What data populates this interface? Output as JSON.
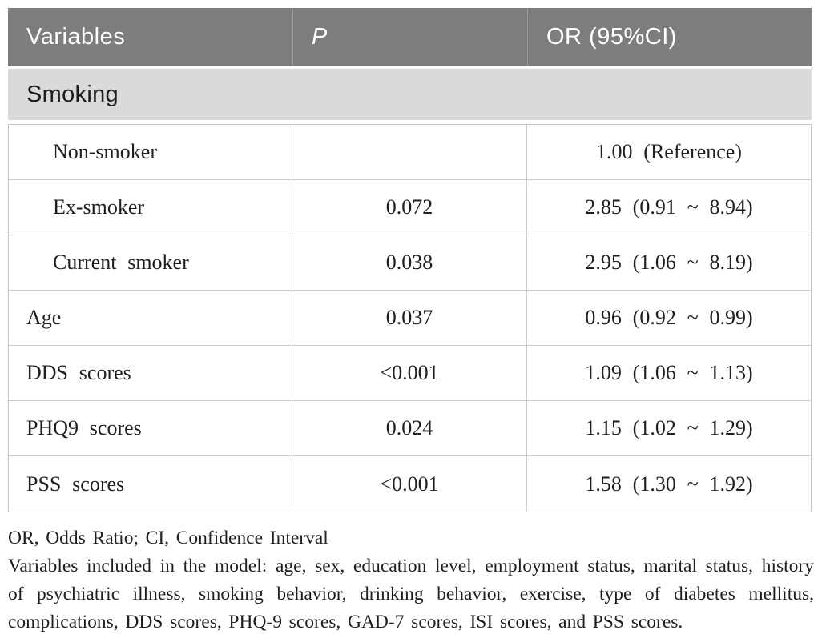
{
  "table": {
    "columns": [
      "Variables",
      "P",
      "OR (95%CI)"
    ],
    "section_label": "Smoking",
    "rows": [
      {
        "label": "Non-smoker",
        "indent": true,
        "p": "",
        "or": "1.00 (Reference)"
      },
      {
        "label": "Ex-smoker",
        "indent": true,
        "p": "0.072",
        "or": "2.85 (0.91 ~ 8.94)"
      },
      {
        "label": "Current smoker",
        "indent": true,
        "p": "0.038",
        "or": "2.95 (1.06 ~ 8.19)"
      },
      {
        "label": "Age",
        "indent": false,
        "p": "0.037",
        "or": "0.96 (0.92 ~ 0.99)"
      },
      {
        "label": "DDS scores",
        "indent": false,
        "p": "<0.001",
        "or": "1.09 (1.06 ~ 1.13)"
      },
      {
        "label": "PHQ9 scores",
        "indent": false,
        "p": "0.024",
        "or": "1.15 (1.02 ~ 1.29)"
      },
      {
        "label": "PSS scores",
        "indent": false,
        "p": "<0.001",
        "or": "1.58 (1.30 ~ 1.92)"
      }
    ],
    "colors": {
      "header_bg": "#7d7d7d",
      "header_text": "#ffffff",
      "section_bg": "#dadada",
      "body_text": "#1f1f1f",
      "border": "#cccccc"
    }
  },
  "footnotes": {
    "abbreviations": "OR, Odds Ratio; CI, Confidence Interval",
    "model_variables": "Variables included in the model: age, sex, education level, employment status, marital status, history of psychiatric illness, smoking behavior, drinking behavior, exercise, type of diabetes mellitus, complications, DDS scores, PHQ-9 scores, GAD-7 scores, ISI scores, and PSS scores."
  }
}
